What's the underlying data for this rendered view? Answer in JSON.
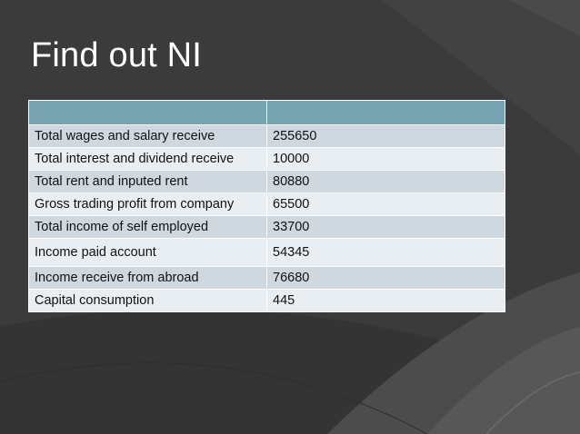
{
  "slide": {
    "title": "Find out NI"
  },
  "table": {
    "header": [
      "",
      ""
    ],
    "rows": [
      {
        "label": "Total wages and salary receive",
        "value": "255650"
      },
      {
        "label": "Total interest and dividend receive",
        "value": "10000"
      },
      {
        "label": "Total rent and inputed rent",
        "value": "80880"
      },
      {
        "label": "Gross trading profit from company",
        "value": "65500"
      },
      {
        "label": "Total income of self employed",
        "value": "33700"
      },
      {
        "label": "Income paid account",
        "value": "54345"
      },
      {
        "label": "Income receive from abroad",
        "value": "76680"
      },
      {
        "label": "Capital consumption",
        "value": "445"
      }
    ]
  },
  "colors": {
    "background": "#3a3a3a",
    "header_fill": "#78a4b2",
    "row_dark": "#cfd8df",
    "row_light": "#e8eef2",
    "title_text": "#ffffff"
  }
}
